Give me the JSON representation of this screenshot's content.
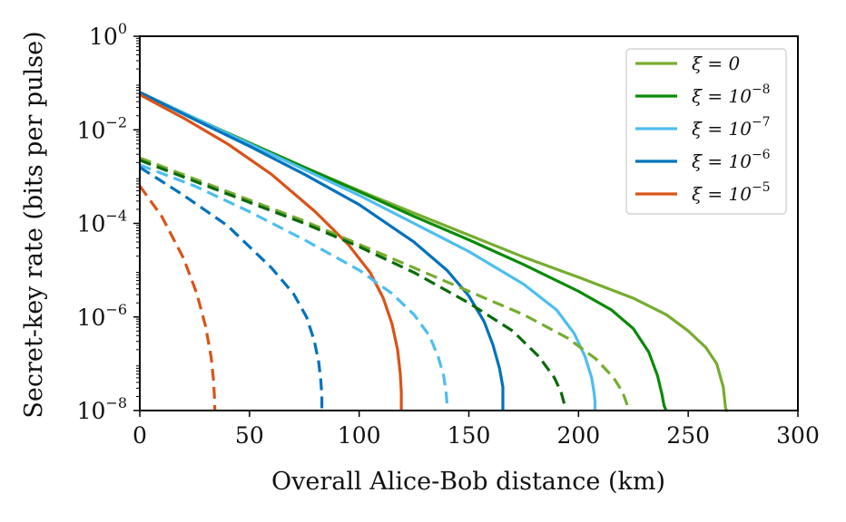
{
  "chart_data": {
    "type": "line",
    "title": "",
    "xlabel": "Overall Alice-Bob distance (km)",
    "ylabel": "Secret-key rate (bits per pulse)",
    "xlim": [
      0,
      300
    ],
    "ylim_log10": [
      -8,
      0
    ],
    "y_scale": "log",
    "grid": false,
    "legend_position": "top-right",
    "x_ticks": [
      0,
      50,
      100,
      150,
      200,
      250,
      300
    ],
    "x_tick_labels": [
      "0",
      "50",
      "100",
      "150",
      "200",
      "250",
      "300"
    ],
    "y_ticks_exponent": [
      0,
      -2,
      -4,
      -6,
      -8
    ],
    "y_tick_base": "10",
    "y_tick_exponent_labels": [
      "0",
      "−2",
      "−4",
      "−6",
      "−8"
    ],
    "series": [
      {
        "name": "ξ = 0",
        "legend_main": "ξ = 0",
        "legend_sup": "",
        "color": "#77ac30",
        "style": "solid",
        "x": [
          0,
          25,
          50,
          75,
          100,
          125,
          150,
          175,
          200,
          225,
          240,
          250,
          258,
          263,
          266,
          267,
          267.5,
          268
        ],
        "log10_y": [
          -1.2,
          -1.75,
          -2.28,
          -2.8,
          -3.3,
          -3.78,
          -4.25,
          -4.72,
          -5.15,
          -5.6,
          -5.95,
          -6.3,
          -6.65,
          -7.0,
          -7.5,
          -7.95,
          -8.0,
          -8.0
        ]
      },
      {
        "name": "ξ = 10^-8",
        "legend_main": "ξ = 10",
        "legend_sup": "−8",
        "color": "#0a8a0a",
        "style": "solid",
        "x": [
          0,
          25,
          50,
          75,
          100,
          125,
          150,
          175,
          200,
          215,
          225,
          232,
          236,
          238,
          239,
          240
        ],
        "log10_y": [
          -1.2,
          -1.75,
          -2.28,
          -2.8,
          -3.32,
          -3.85,
          -4.35,
          -4.88,
          -5.45,
          -5.85,
          -6.25,
          -6.75,
          -7.25,
          -7.65,
          -7.9,
          -8.0
        ]
      },
      {
        "name": "ξ = 10^-7",
        "legend_main": "ξ = 10",
        "legend_sup": "−7",
        "color": "#4dbeee",
        "style": "solid",
        "x": [
          0,
          25,
          50,
          75,
          100,
          125,
          150,
          175,
          190,
          198,
          203,
          206,
          207,
          207.5,
          207.5
        ],
        "log10_y": [
          -1.2,
          -1.75,
          -2.3,
          -2.85,
          -3.4,
          -4.0,
          -4.6,
          -5.3,
          -5.85,
          -6.35,
          -6.85,
          -7.3,
          -7.6,
          -7.8,
          -8.0
        ]
      },
      {
        "name": "ξ = 10^-6",
        "legend_main": "ξ = 10",
        "legend_sup": "−6",
        "color": "#0072bd",
        "style": "solid",
        "x": [
          0,
          25,
          50,
          75,
          100,
          125,
          140,
          150,
          157,
          161,
          164,
          165.5,
          165.5
        ],
        "log10_y": [
          -1.2,
          -1.78,
          -2.35,
          -2.95,
          -3.6,
          -4.4,
          -5.0,
          -5.55,
          -6.1,
          -6.6,
          -7.1,
          -7.5,
          -8.0
        ]
      },
      {
        "name": "ξ = 10^-5",
        "legend_main": "ξ = 10",
        "legend_sup": "−5",
        "color": "#d95319",
        "style": "solid",
        "x": [
          0,
          20,
          40,
          60,
          80,
          95,
          105,
          111,
          115,
          117.5,
          118.7,
          119.2,
          119.2
        ],
        "log10_y": [
          -1.25,
          -1.75,
          -2.3,
          -2.95,
          -3.75,
          -4.45,
          -5.05,
          -5.6,
          -6.15,
          -6.7,
          -7.2,
          -7.6,
          -8.0
        ]
      },
      {
        "name": "ξ = 0 (dashed)",
        "color": "#77ac30",
        "style": "dashed",
        "x": [
          0,
          25,
          50,
          75,
          100,
          125,
          150,
          175,
          195,
          208,
          216,
          220,
          222,
          222.5
        ],
        "log10_y": [
          -2.6,
          -3.05,
          -3.5,
          -3.95,
          -4.45,
          -4.95,
          -5.45,
          -5.95,
          -6.45,
          -6.9,
          -7.3,
          -7.6,
          -7.85,
          -8.0
        ]
      },
      {
        "name": "ξ = 10^-8 (dashed)",
        "color": "#0a6a0a",
        "style": "dashed",
        "x": [
          0,
          25,
          50,
          75,
          100,
          125,
          150,
          170,
          182,
          189,
          192,
          193.5,
          193.5
        ],
        "log10_y": [
          -2.65,
          -3.1,
          -3.55,
          -4.0,
          -4.5,
          -5.05,
          -5.7,
          -6.3,
          -6.85,
          -7.3,
          -7.6,
          -7.85,
          -8.0
        ]
      },
      {
        "name": "ξ = 10^-7 (dashed)",
        "color": "#4dbeee",
        "style": "dashed",
        "x": [
          0,
          25,
          50,
          75,
          100,
          115,
          125,
          132,
          136,
          138.5,
          139.5,
          140,
          140
        ],
        "log10_y": [
          -2.75,
          -3.2,
          -3.75,
          -4.35,
          -5.0,
          -5.5,
          -5.95,
          -6.4,
          -6.85,
          -7.25,
          -7.55,
          -7.8,
          -8.0
        ]
      },
      {
        "name": "ξ = 10^-6 (dashed)",
        "color": "#0072bd",
        "style": "dashed",
        "x": [
          0,
          20,
          40,
          60,
          70,
          76,
          79.5,
          81.5,
          82.5,
          83,
          83
        ],
        "log10_y": [
          -2.8,
          -3.4,
          -4.05,
          -4.95,
          -5.5,
          -6.0,
          -6.5,
          -6.95,
          -7.35,
          -7.7,
          -8.0
        ]
      },
      {
        "name": "ξ = 10^-5 (dashed)",
        "color": "#d95319",
        "style": "dashed",
        "x": [
          0,
          10,
          20,
          26,
          30,
          32.5,
          33.6,
          34,
          34.2
        ],
        "log10_y": [
          -3.2,
          -3.85,
          -4.75,
          -5.5,
          -6.2,
          -6.85,
          -7.35,
          -7.7,
          -8.0
        ]
      }
    ]
  }
}
